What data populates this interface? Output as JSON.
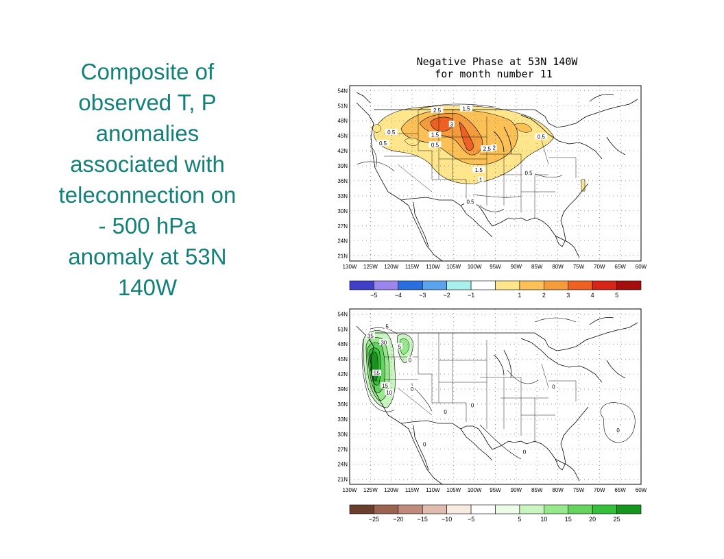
{
  "slide": {
    "title_lines": [
      "Composite of",
      "observed T, P",
      "anomalies",
      "associated with",
      "teleconnection on",
      "- 500 hPa",
      "anomaly at 53N",
      "140W"
    ],
    "title_color": "#13807a"
  },
  "figure_title": {
    "line1": "Negative Phase at  53N 140W",
    "line2": "for month number 11"
  },
  "maps": [
    {
      "name": "temperature-map",
      "lon_range": [
        -130,
        -60
      ],
      "lat_range": [
        20,
        55
      ],
      "lon_labels": [
        "130W",
        "125W",
        "120W",
        "115W",
        "110W",
        "105W",
        "100W",
        "95W",
        "90W",
        "85W",
        "80W",
        "75W",
        "70W",
        "65W",
        "60W"
      ],
      "lat_labels": [
        "54N",
        "51N",
        "48N",
        "45N",
        "42N",
        "39N",
        "36N",
        "33N",
        "30N",
        "27N",
        "24N",
        "21N"
      ],
      "contour_labels": [
        {
          "text": "1.5",
          "lon": -102,
          "lat": 50.4
        },
        {
          "text": "2.5",
          "lon": -109,
          "lat": 50.1
        },
        {
          "text": "3",
          "lon": -105.5,
          "lat": 47.3
        },
        {
          "text": "1.5",
          "lon": -109.5,
          "lat": 45.2
        },
        {
          "text": "0.5",
          "lon": -120,
          "lat": 45.7
        },
        {
          "text": "0.5",
          "lon": -122,
          "lat": 43.5
        },
        {
          "text": "0.5",
          "lon": -109.5,
          "lat": 43.2
        },
        {
          "text": "2.5",
          "lon": -97,
          "lat": 42.4
        },
        {
          "text": "2",
          "lon": -95.3,
          "lat": 42.6
        },
        {
          "text": "1.5",
          "lon": -99,
          "lat": 38.2
        },
        {
          "text": "1",
          "lon": -98.5,
          "lat": 36.2
        },
        {
          "text": "0.5",
          "lon": -87,
          "lat": 37.6
        },
        {
          "text": "0.5",
          "lon": -84,
          "lat": 44.8
        },
        {
          "text": "0.5",
          "lon": -101,
          "lat": 31.8
        }
      ]
    },
    {
      "name": "precipitation-map",
      "lon_range": [
        -130,
        -60
      ],
      "lat_range": [
        20,
        55
      ],
      "lon_labels": [
        "130W",
        "125W",
        "120W",
        "115W",
        "110W",
        "105W",
        "100W",
        "95W",
        "90W",
        "85W",
        "80W",
        "75W",
        "70W",
        "65W",
        "60W"
      ],
      "lat_labels": [
        "54N",
        "51N",
        "48N",
        "45N",
        "42N",
        "39N",
        "36N",
        "33N",
        "30N",
        "27N",
        "24N",
        "21N"
      ],
      "contour_labels": [
        {
          "text": "5",
          "lon": -121,
          "lat": 51.5
        },
        {
          "text": "35",
          "lon": -125,
          "lat": 49.6
        },
        {
          "text": "30",
          "lon": -121.8,
          "lat": 48.3
        },
        {
          "text": "5",
          "lon": -118,
          "lat": 47.5
        },
        {
          "text": "55",
          "lon": -123.5,
          "lat": 42.2
        },
        {
          "text": "15",
          "lon": -121.5,
          "lat": 39.7
        },
        {
          "text": "10",
          "lon": -120.5,
          "lat": 38.3
        },
        {
          "text": "0",
          "lon": -115.5,
          "lat": 44.8
        },
        {
          "text": "0",
          "lon": -115,
          "lat": 39.0
        },
        {
          "text": "0",
          "lon": -107,
          "lat": 34.5
        },
        {
          "text": "0",
          "lon": -100.5,
          "lat": 35.8
        },
        {
          "text": "0",
          "lon": -112,
          "lat": 28.0
        },
        {
          "text": "0",
          "lon": -88,
          "lat": 26.5
        },
        {
          "text": "0",
          "lon": -81,
          "lat": 39.5
        },
        {
          "text": "0",
          "lon": -65.5,
          "lat": 30.8
        }
      ]
    }
  ],
  "colorbars": [
    {
      "name": "temperature-colorbar",
      "colors": [
        "#3f3fc8",
        "#9a86ec",
        "#2a6fe0",
        "#5aa4ee",
        "#a8f0ee",
        "#ffffff",
        "#ffe68c",
        "#fbc056",
        "#f49c3c",
        "#ed6222",
        "#d72418",
        "#a60e0e"
      ],
      "labels": [
        "-5",
        "-4",
        "-3",
        "-2",
        "-1",
        "1",
        "2",
        "3",
        "4",
        "5"
      ]
    },
    {
      "name": "precipitation-colorbar",
      "colors": [
        "#6a3f2c",
        "#9a6450",
        "#bf8c7c",
        "#dfbcae",
        "#f7ebe2",
        "#ffffff",
        "#ecfde8",
        "#c8f5c0",
        "#97e78d",
        "#64d45e",
        "#34c03a",
        "#16961e"
      ],
      "labels": [
        "-25",
        "-20",
        "-15",
        "-10",
        "-5",
        "5",
        "10",
        "15",
        "20",
        "25"
      ]
    }
  ]
}
